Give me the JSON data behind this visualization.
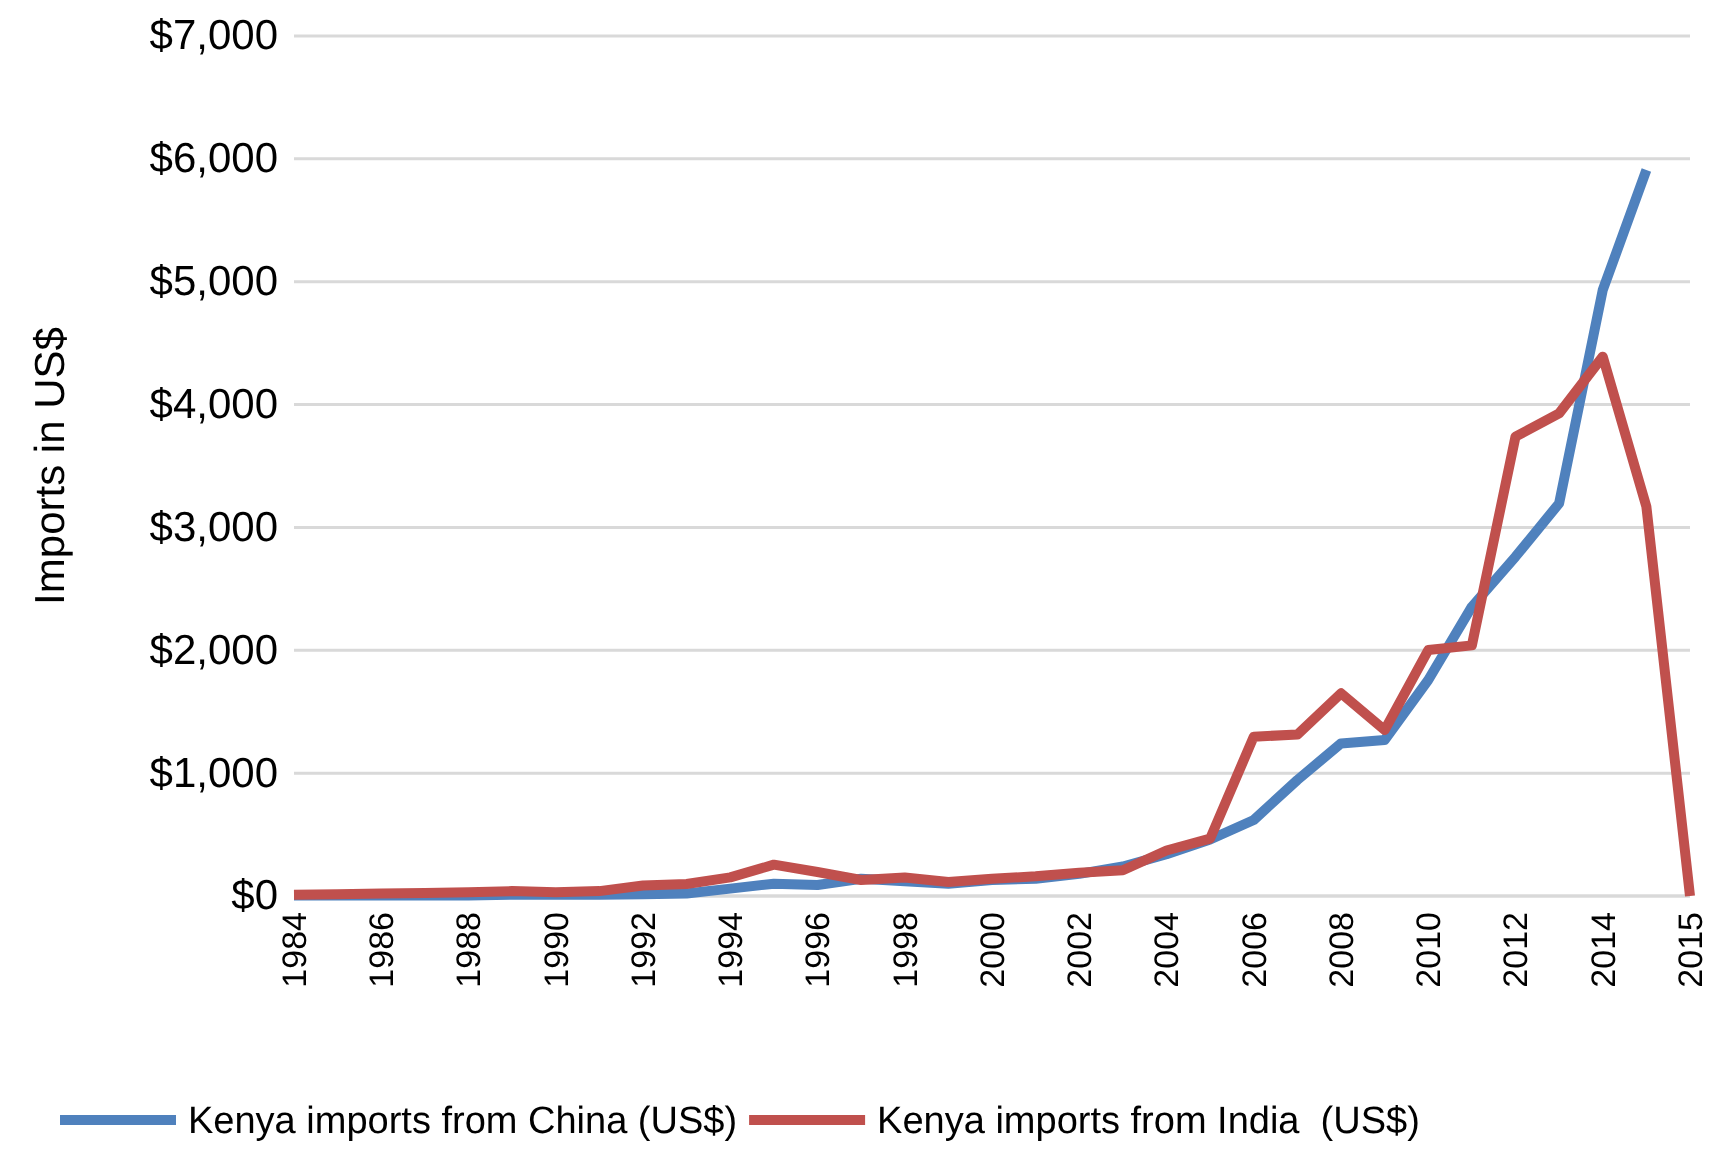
{
  "chart_data": {
    "type": "line",
    "ylabel": "Imports in US$",
    "categories": [
      "1984",
      null,
      "1986",
      null,
      "1988",
      null,
      "1990",
      null,
      "1992",
      null,
      "1994",
      null,
      "1996",
      null,
      "1998",
      null,
      "2000",
      null,
      "2002",
      null,
      "2004",
      null,
      "2006",
      null,
      "2008",
      null,
      "2010",
      null,
      "2012",
      null,
      "2014",
      null,
      "2015"
    ],
    "series": [
      {
        "name": "Kenya imports from China (US$)",
        "color": "#4f81bd",
        "values": [
          5,
          5,
          5,
          5,
          5,
          10,
          10,
          10,
          15,
          20,
          60,
          100,
          90,
          140,
          120,
          100,
          130,
          140,
          180,
          240,
          340,
          460,
          619,
          944,
          1242,
          1270,
          1758,
          2355,
          2762,
          3196,
          4932,
          5909,
          null
        ]
      },
      {
        "name": "Kenya imports from India  (US$)",
        "color": "#c0504d",
        "values": [
          10,
          15,
          20,
          25,
          30,
          40,
          30,
          40,
          85,
          98,
          152,
          255,
          195,
          130,
          150,
          114,
          140,
          160,
          190,
          210,
          370,
          467,
          1297,
          1314,
          1650,
          1351,
          2002,
          2040,
          3739,
          3928,
          4390,
          3169,
          0
        ]
      }
    ],
    "ylim": [
      0,
      7000
    ],
    "yticks": [
      {
        "value": 0,
        "label": "$0"
      },
      {
        "value": 1000,
        "label": "$1,000"
      },
      {
        "value": 2000,
        "label": "$2,000"
      },
      {
        "value": 3000,
        "label": "$3,000"
      },
      {
        "value": 4000,
        "label": "$4,000"
      },
      {
        "value": 5000,
        "label": "$5,000"
      },
      {
        "value": 6000,
        "label": "$6,000"
      },
      {
        "value": 7000,
        "label": "$7,000"
      }
    ],
    "grid": "y",
    "legend": "bottom",
    "marker": "none",
    "line_style": "solid"
  }
}
